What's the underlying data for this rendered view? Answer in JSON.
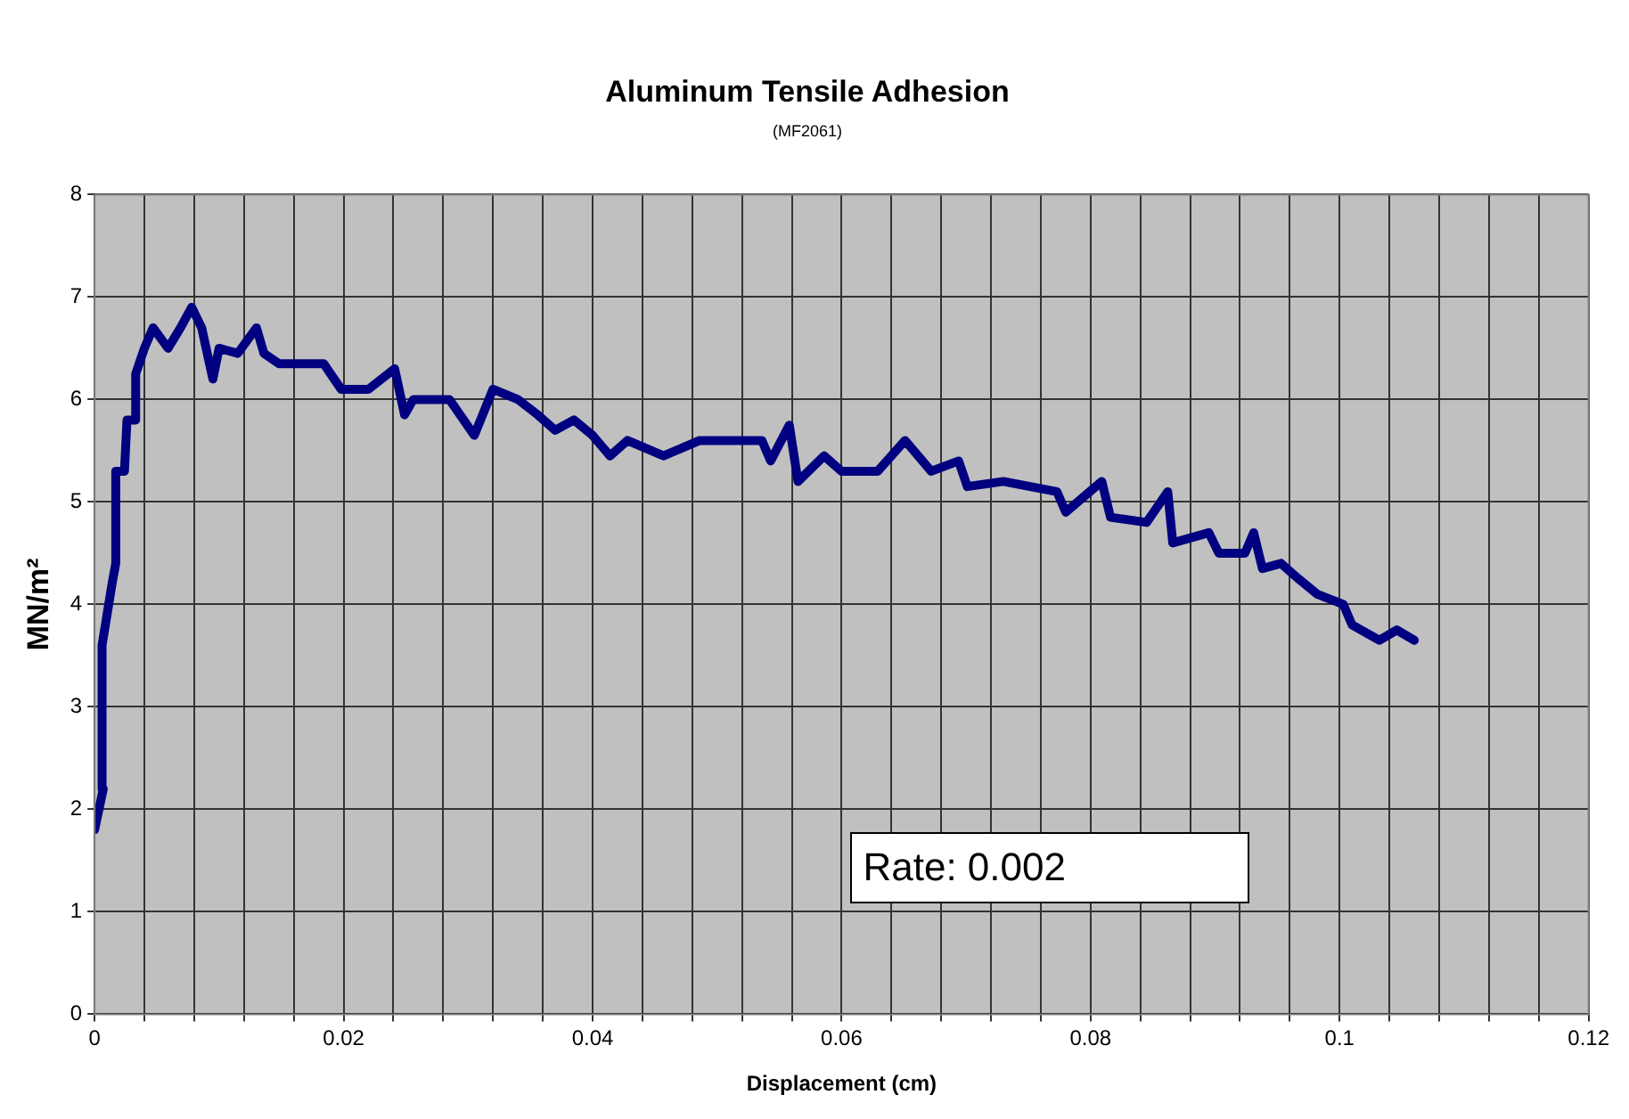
{
  "chart_data": {
    "type": "line",
    "title": "Aluminum Tensile Adhesion",
    "subtitle": "(MF2061)",
    "xlabel": "Displacement (cm)",
    "ylabel": "MN/m²",
    "annotations": [
      "Rate: 0.002"
    ],
    "xlim": [
      0,
      0.12
    ],
    "ylim": [
      0,
      8
    ],
    "xticks": [
      0,
      {
        "value": 0.004,
        "label": null
      },
      {
        "value": 0.008,
        "label": null
      },
      {
        "value": 0.012,
        "label": null
      },
      {
        "value": 0.016,
        "label": null
      },
      0.02,
      {
        "value": 0.024,
        "label": null
      },
      {
        "value": 0.028,
        "label": null
      },
      {
        "value": 0.032,
        "label": null
      },
      {
        "value": 0.036,
        "label": null
      },
      0.04,
      {
        "value": 0.044,
        "label": null
      },
      {
        "value": 0.048,
        "label": null
      },
      {
        "value": 0.052,
        "label": null
      },
      {
        "value": 0.056,
        "label": null
      },
      0.06,
      {
        "value": 0.064,
        "label": null
      },
      {
        "value": 0.068,
        "label": null
      },
      {
        "value": 0.072,
        "label": null
      },
      {
        "value": 0.076,
        "label": null
      },
      0.08,
      {
        "value": 0.084,
        "label": null
      },
      {
        "value": 0.088,
        "label": null
      },
      {
        "value": 0.092,
        "label": null
      },
      {
        "value": 0.096,
        "label": null
      },
      0.1,
      {
        "value": 0.104,
        "label": null
      },
      {
        "value": 0.108,
        "label": null
      },
      {
        "value": 0.112,
        "label": null
      },
      {
        "value": 0.116,
        "label": null
      },
      0.12
    ],
    "yticks": [
      0,
      1,
      2,
      3,
      4,
      5,
      6,
      7,
      8
    ],
    "grid": true,
    "legend": false,
    "marker": "none",
    "line_style": "solid",
    "series": [
      {
        "color": "#000080",
        "x": [
          0,
          0.0007,
          0.0006,
          0.0014,
          0.0017,
          0.0017,
          0.0024,
          0.0026,
          0.0033,
          0.0033,
          0.004,
          0.0047,
          0.0059,
          0.0069,
          0.0078,
          0.0086,
          0.0095,
          0.01,
          0.0115,
          0.013,
          0.0136,
          0.0148,
          0.0184,
          0.0198,
          0.022,
          0.0241,
          0.0249,
          0.0256,
          0.0285,
          0.0305,
          0.032,
          0.034,
          0.0356,
          0.037,
          0.0385,
          0.04,
          0.0414,
          0.0428,
          0.0457,
          0.0486,
          0.0536,
          0.0543,
          0.0558,
          0.0565,
          0.0586,
          0.06,
          0.0629,
          0.0651,
          0.0672,
          0.0694,
          0.0701,
          0.073,
          0.0773,
          0.078,
          0.0809,
          0.0816,
          0.0845,
          0.0862,
          0.0866,
          0.0895,
          0.0903,
          0.0924,
          0.0931,
          0.0938,
          0.0953,
          0.0967,
          0.0982,
          0.1003,
          0.101,
          0.1032,
          0.1046,
          0.106
        ],
        "values": [
          1.8,
          2.2,
          3.6,
          4.2,
          4.4,
          5.3,
          5.3,
          5.8,
          5.8,
          6.25,
          6.5,
          6.7,
          6.5,
          6.7,
          6.9,
          6.7,
          6.2,
          6.5,
          6.45,
          6.7,
          6.45,
          6.35,
          6.35,
          6.1,
          6.1,
          6.3,
          5.85,
          6.0,
          6.0,
          5.65,
          6.1,
          6.0,
          5.85,
          5.7,
          5.8,
          5.65,
          5.45,
          5.6,
          5.45,
          5.6,
          5.6,
          5.4,
          5.75,
          5.2,
          5.45,
          5.3,
          5.3,
          5.6,
          5.3,
          5.4,
          5.15,
          5.2,
          5.1,
          4.9,
          5.2,
          4.85,
          4.8,
          5.1,
          4.6,
          4.7,
          4.5,
          4.5,
          4.7,
          4.35,
          4.4,
          4.25,
          4.1,
          4.0,
          3.8,
          3.65,
          3.75,
          3.65
        ]
      }
    ]
  }
}
